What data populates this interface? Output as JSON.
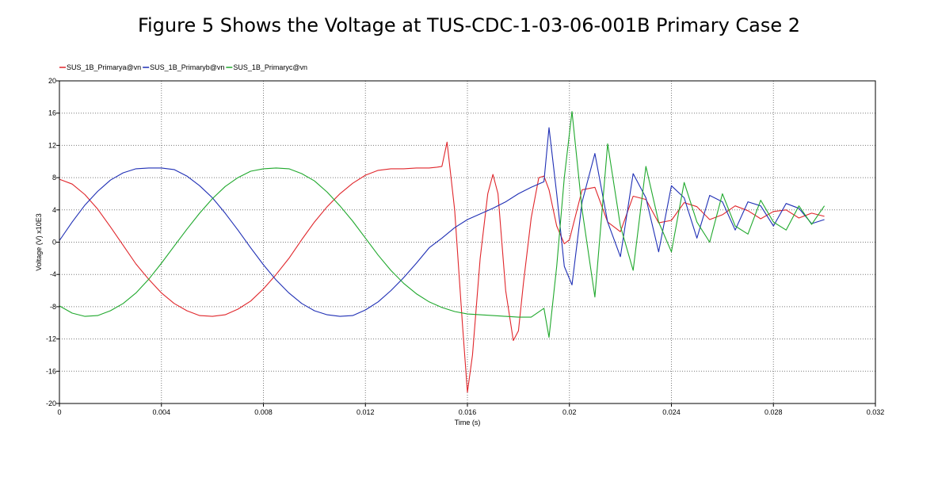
{
  "title": "Figure 5 Shows the Voltage at TUS-CDC-1-03-06-001B Primary Case 2",
  "colors": {
    "phase_a": "#e0262b",
    "phase_b": "#1f2fb5",
    "phase_c": "#1fa82c",
    "grid": "#7a7a7a",
    "frame": "#000000"
  },
  "chart_data": {
    "type": "line",
    "title": "",
    "xlabel": "Time (s)",
    "ylabel": "Voltage (V) x10E3",
    "xlim": [
      0,
      0.032
    ],
    "ylim": [
      -20,
      20
    ],
    "xticks": [
      0,
      0.004,
      0.008,
      0.012,
      0.016,
      0.02,
      0.024,
      0.028,
      0.032
    ],
    "xtick_labels": [
      "0",
      "0.004",
      "0.008",
      "0.012",
      "0.016",
      "0.02",
      "0.024",
      "0.028",
      "0.032"
    ],
    "yticks": [
      -20,
      -16,
      -12,
      -8,
      -4,
      0,
      4,
      8,
      12,
      16,
      20
    ],
    "ytick_labels": [
      "-20",
      "-16",
      "-12",
      "-8",
      "-4",
      "0",
      "4",
      "8",
      "12",
      "16",
      "20"
    ],
    "grid": true,
    "legend_position": "top-left",
    "series": [
      {
        "name": "SUS_1B_Primarya@vn",
        "color": "#e0262b",
        "x": [
          0,
          0.0005,
          0.001,
          0.0015,
          0.002,
          0.0025,
          0.003,
          0.0035,
          0.004,
          0.0045,
          0.005,
          0.0055,
          0.006,
          0.0065,
          0.007,
          0.0075,
          0.008,
          0.0085,
          0.009,
          0.0095,
          0.01,
          0.0105,
          0.011,
          0.0115,
          0.012,
          0.0125,
          0.013,
          0.0135,
          0.014,
          0.0145,
          0.0148,
          0.015,
          0.0152,
          0.0155,
          0.0158,
          0.016,
          0.0162,
          0.0165,
          0.0168,
          0.017,
          0.0172,
          0.0175,
          0.0178,
          0.018,
          0.0182,
          0.0185,
          0.0188,
          0.019,
          0.0192,
          0.0195,
          0.0198,
          0.02,
          0.0205,
          0.021,
          0.0215,
          0.022,
          0.0225,
          0.023,
          0.0235,
          0.024,
          0.0245,
          0.025,
          0.0255,
          0.026,
          0.0265,
          0.027,
          0.0275,
          0.028,
          0.0285,
          0.029,
          0.0295,
          0.03
        ],
        "y": [
          7.8,
          7.2,
          5.9,
          4.1,
          1.9,
          -0.4,
          -2.7,
          -4.6,
          -6.3,
          -7.6,
          -8.5,
          -9.1,
          -9.2,
          -9.0,
          -8.3,
          -7.3,
          -5.8,
          -4.0,
          -2.0,
          0.3,
          2.5,
          4.4,
          6.0,
          7.3,
          8.3,
          8.9,
          9.1,
          9.1,
          9.2,
          9.2,
          9.3,
          9.4,
          12.4,
          4.0,
          -10.0,
          -18.6,
          -14.0,
          -2.0,
          6.0,
          8.4,
          6.0,
          -6.0,
          -12.2,
          -11.0,
          -5.0,
          3.0,
          8.0,
          8.2,
          6.5,
          2.0,
          -0.2,
          0.3,
          6.5,
          6.8,
          2.5,
          1.3,
          5.7,
          5.3,
          2.4,
          2.7,
          4.9,
          4.4,
          2.8,
          3.4,
          4.5,
          3.9,
          2.9,
          3.8,
          4.0,
          3.0,
          3.6,
          3.2
        ]
      },
      {
        "name": "SUS_1B_Primaryb@vn",
        "color": "#1f2fb5",
        "x": [
          0,
          0.0005,
          0.001,
          0.0015,
          0.002,
          0.0025,
          0.003,
          0.0035,
          0.004,
          0.0045,
          0.005,
          0.0055,
          0.006,
          0.0065,
          0.007,
          0.0075,
          0.008,
          0.0085,
          0.009,
          0.0095,
          0.01,
          0.0105,
          0.011,
          0.0115,
          0.012,
          0.0125,
          0.013,
          0.0135,
          0.014,
          0.0145,
          0.015,
          0.0155,
          0.016,
          0.0165,
          0.017,
          0.0175,
          0.018,
          0.0185,
          0.019,
          0.0192,
          0.0195,
          0.0198,
          0.0201,
          0.0205,
          0.021,
          0.0215,
          0.022,
          0.0225,
          0.023,
          0.0235,
          0.024,
          0.0245,
          0.025,
          0.0255,
          0.026,
          0.0265,
          0.027,
          0.0275,
          0.028,
          0.0285,
          0.029,
          0.0295,
          0.03
        ],
        "y": [
          0.2,
          2.5,
          4.6,
          6.3,
          7.7,
          8.6,
          9.1,
          9.2,
          9.2,
          9.0,
          8.2,
          7.0,
          5.5,
          3.6,
          1.5,
          -0.7,
          -2.8,
          -4.7,
          -6.3,
          -7.6,
          -8.5,
          -9.0,
          -9.2,
          -9.1,
          -8.4,
          -7.4,
          -6.0,
          -4.4,
          -2.6,
          -0.7,
          0.5,
          1.8,
          2.8,
          3.5,
          4.2,
          5.0,
          6.0,
          6.8,
          7.5,
          14.2,
          6.0,
          -3.0,
          -5.3,
          5.0,
          11.0,
          2.5,
          -1.8,
          8.5,
          5.5,
          -1.2,
          7.0,
          5.5,
          0.5,
          5.8,
          5.0,
          1.5,
          5.0,
          4.5,
          2.0,
          4.8,
          4.2,
          2.3,
          2.8
        ]
      },
      {
        "name": "SUS_1B_Primaryc@vn",
        "color": "#1fa82c",
        "x": [
          0,
          0.0005,
          0.001,
          0.0015,
          0.002,
          0.0025,
          0.003,
          0.0035,
          0.004,
          0.0045,
          0.005,
          0.0055,
          0.006,
          0.0065,
          0.007,
          0.0075,
          0.008,
          0.0085,
          0.009,
          0.0095,
          0.01,
          0.0105,
          0.011,
          0.0115,
          0.012,
          0.0125,
          0.013,
          0.0135,
          0.014,
          0.0145,
          0.015,
          0.0155,
          0.016,
          0.0165,
          0.017,
          0.0175,
          0.018,
          0.0185,
          0.019,
          0.0192,
          0.0195,
          0.0198,
          0.0201,
          0.0205,
          0.021,
          0.0215,
          0.022,
          0.0225,
          0.023,
          0.0235,
          0.024,
          0.0245,
          0.025,
          0.0255,
          0.026,
          0.0265,
          0.027,
          0.0275,
          0.028,
          0.0285,
          0.029,
          0.0295,
          0.03
        ],
        "y": [
          -7.9,
          -8.8,
          -9.2,
          -9.1,
          -8.5,
          -7.6,
          -6.3,
          -4.6,
          -2.6,
          -0.5,
          1.6,
          3.6,
          5.4,
          6.9,
          8.0,
          8.8,
          9.1,
          9.2,
          9.1,
          8.5,
          7.6,
          6.2,
          4.5,
          2.6,
          0.5,
          -1.6,
          -3.5,
          -5.1,
          -6.4,
          -7.4,
          -8.1,
          -8.6,
          -8.9,
          -9.0,
          -9.1,
          -9.2,
          -9.3,
          -9.3,
          -8.2,
          -11.8,
          -3.0,
          8.0,
          16.2,
          4.0,
          -6.8,
          12.2,
          2.0,
          -3.5,
          9.4,
          2.5,
          -1.2,
          7.4,
          2.5,
          0.0,
          6.0,
          2.0,
          1.0,
          5.2,
          2.5,
          1.5,
          4.5,
          2.2,
          4.5
        ]
      }
    ]
  }
}
